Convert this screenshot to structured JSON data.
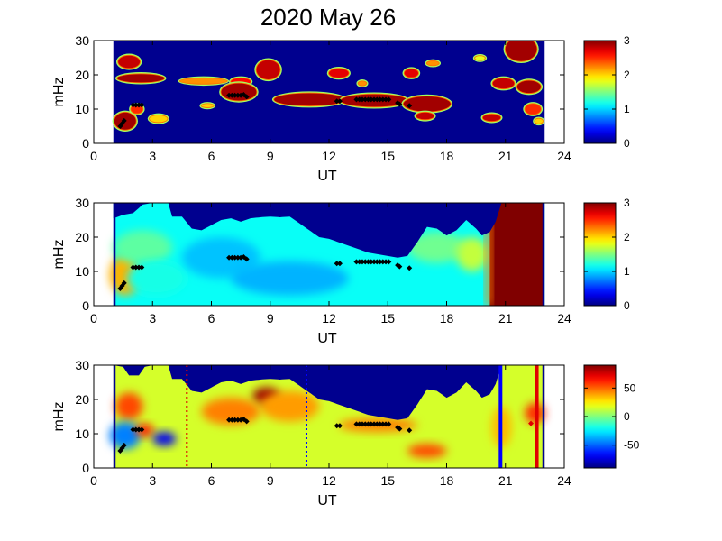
{
  "title": "2020 May 26",
  "panel_xlabel": "UT",
  "panel_ylabel": "mHz",
  "colors": {
    "background_fill": "#00008f",
    "black_marker": "#000000",
    "blue_line": "#0000ff",
    "red_line": "#e00000"
  },
  "chart_data": [
    {
      "type": "heatmap",
      "title": "",
      "xlabel": "UT",
      "ylabel": "mHz",
      "xlim": [
        0,
        24
      ],
      "ylim": [
        0,
        30
      ],
      "xticks": [
        "0",
        "3",
        "6",
        "9",
        "12",
        "15",
        "18",
        "21",
        "24"
      ],
      "yticks": [
        "0",
        "10",
        "20",
        "30"
      ],
      "data_x_range": [
        1.0,
        23.0
      ],
      "colorbar": {
        "min": 0,
        "max": 3,
        "ticks": [
          "0",
          "1",
          "2",
          "3"
        ]
      },
      "blobs": [
        {
          "x": 1.8,
          "y": 23.8,
          "w": 0.55,
          "h": 1.8,
          "v": 2.8
        },
        {
          "x": 2.4,
          "y": 19.0,
          "w": 1.2,
          "h": 1.2,
          "v": 2.9
        },
        {
          "x": 1.6,
          "y": 6.5,
          "w": 0.55,
          "h": 2.5,
          "v": 2.9
        },
        {
          "x": 2.2,
          "y": 10.0,
          "w": 0.3,
          "h": 1.2,
          "v": 2.5
        },
        {
          "x": 3.3,
          "y": 7.2,
          "w": 0.45,
          "h": 1.0,
          "v": 2.0
        },
        {
          "x": 5.6,
          "y": 18.2,
          "w": 1.2,
          "h": 0.8,
          "v": 2.2
        },
        {
          "x": 7.5,
          "y": 18.0,
          "w": 0.5,
          "h": 1.0,
          "v": 2.6
        },
        {
          "x": 7.4,
          "y": 15.0,
          "w": 0.9,
          "h": 2.5,
          "v": 2.9
        },
        {
          "x": 8.9,
          "y": 21.5,
          "w": 0.6,
          "h": 2.8,
          "v": 2.8
        },
        {
          "x": 5.8,
          "y": 11.0,
          "w": 0.3,
          "h": 0.5,
          "v": 2.0
        },
        {
          "x": 11.0,
          "y": 12.8,
          "w": 1.8,
          "h": 1.8,
          "v": 2.9
        },
        {
          "x": 14.3,
          "y": 12.5,
          "w": 1.7,
          "h": 1.8,
          "v": 2.9
        },
        {
          "x": 17.0,
          "y": 11.5,
          "w": 1.2,
          "h": 2.2,
          "v": 2.9
        },
        {
          "x": 12.5,
          "y": 20.5,
          "w": 0.5,
          "h": 1.3,
          "v": 2.7
        },
        {
          "x": 13.7,
          "y": 17.5,
          "w": 0.2,
          "h": 0.6,
          "v": 2.2
        },
        {
          "x": 16.2,
          "y": 20.5,
          "w": 0.35,
          "h": 1.2,
          "v": 2.7
        },
        {
          "x": 16.9,
          "y": 8.0,
          "w": 0.45,
          "h": 1.0,
          "v": 2.8
        },
        {
          "x": 17.3,
          "y": 23.4,
          "w": 0.3,
          "h": 0.6,
          "v": 2.2
        },
        {
          "x": 19.7,
          "y": 24.9,
          "w": 0.25,
          "h": 0.6,
          "v": 1.8
        },
        {
          "x": 20.9,
          "y": 17.5,
          "w": 0.55,
          "h": 1.5,
          "v": 2.8
        },
        {
          "x": 20.3,
          "y": 7.5,
          "w": 0.45,
          "h": 1.0,
          "v": 2.8
        },
        {
          "x": 21.8,
          "y": 27.5,
          "w": 0.8,
          "h": 3.5,
          "v": 2.9
        },
        {
          "x": 22.2,
          "y": 16.5,
          "w": 0.6,
          "h": 1.8,
          "v": 2.9
        },
        {
          "x": 22.4,
          "y": 10.0,
          "w": 0.4,
          "h": 1.5,
          "v": 2.5
        },
        {
          "x": 22.7,
          "y": 6.5,
          "w": 0.2,
          "h": 0.7,
          "v": 2.0
        }
      ],
      "markers": [
        [
          1.35,
          5.0
        ],
        [
          1.45,
          5.8
        ],
        [
          1.55,
          6.6
        ],
        [
          2.0,
          11.2
        ],
        [
          2.15,
          11.2
        ],
        [
          2.3,
          11.2
        ],
        [
          2.45,
          11.2
        ],
        [
          6.9,
          14.0
        ],
        [
          7.05,
          14.0
        ],
        [
          7.2,
          14.0
        ],
        [
          7.35,
          14.0
        ],
        [
          7.5,
          14.0
        ],
        [
          7.65,
          14.2
        ],
        [
          7.8,
          13.6
        ],
        [
          12.4,
          12.3
        ],
        [
          12.55,
          12.3
        ],
        [
          13.4,
          12.8
        ],
        [
          13.55,
          12.8
        ],
        [
          13.7,
          12.8
        ],
        [
          13.85,
          12.8
        ],
        [
          14.0,
          12.8
        ],
        [
          14.15,
          12.8
        ],
        [
          14.3,
          12.8
        ],
        [
          14.45,
          12.8
        ],
        [
          14.6,
          12.8
        ],
        [
          14.75,
          12.8
        ],
        [
          14.9,
          12.8
        ],
        [
          15.05,
          12.8
        ],
        [
          15.5,
          11.8
        ],
        [
          15.6,
          11.4
        ],
        [
          16.1,
          11.0
        ]
      ]
    },
    {
      "type": "heatmap",
      "title": "",
      "xlabel": "UT",
      "ylabel": "mHz",
      "xlim": [
        0,
        24
      ],
      "ylim": [
        0,
        30
      ],
      "xticks": [
        "0",
        "3",
        "6",
        "9",
        "12",
        "15",
        "18",
        "21",
        "24"
      ],
      "yticks": [
        "0",
        "10",
        "20",
        "30"
      ],
      "data_x_range": [
        1.0,
        23.0
      ],
      "colorbar": {
        "min": 0,
        "max": 3,
        "ticks": [
          "0",
          "1",
          "2",
          "3"
        ]
      },
      "envelope_top": [
        [
          1.0,
          25.5
        ],
        [
          1.5,
          26.5
        ],
        [
          2.0,
          27.0
        ],
        [
          2.5,
          29.5
        ],
        [
          3.0,
          30
        ],
        [
          3.8,
          30
        ],
        [
          4.0,
          26.0
        ],
        [
          4.5,
          26.0
        ],
        [
          5.0,
          22.5
        ],
        [
          5.5,
          22.0
        ],
        [
          6.0,
          23.5
        ],
        [
          6.5,
          25.0
        ],
        [
          7.0,
          25.5
        ],
        [
          7.5,
          24.5
        ],
        [
          8.0,
          25.5
        ],
        [
          8.5,
          25.8
        ],
        [
          9.0,
          26.0
        ],
        [
          9.5,
          25.8
        ],
        [
          10.0,
          26.0
        ],
        [
          10.5,
          24.0
        ],
        [
          11.0,
          22.0
        ],
        [
          11.5,
          20.0
        ],
        [
          12.0,
          19.5
        ],
        [
          12.5,
          18.5
        ],
        [
          13.0,
          17.5
        ],
        [
          13.5,
          16.5
        ],
        [
          14.0,
          15.5
        ],
        [
          14.5,
          15.0
        ],
        [
          15.0,
          14.5
        ],
        [
          15.5,
          14.0
        ],
        [
          16.0,
          14.5
        ],
        [
          16.5,
          18.5
        ],
        [
          17.0,
          23.0
        ],
        [
          17.5,
          22.5
        ],
        [
          18.0,
          20.5
        ],
        [
          18.5,
          22.0
        ],
        [
          19.0,
          25.0
        ],
        [
          19.5,
          22.5
        ],
        [
          19.8,
          20.5
        ],
        [
          20.2,
          21.5
        ],
        [
          20.5,
          24.5
        ],
        [
          20.8,
          30
        ],
        [
          23.0,
          30
        ]
      ],
      "regions": [
        {
          "x": 1.6,
          "y": 9.0,
          "w": 0.8,
          "h": 6.0,
          "v": 2.1
        },
        {
          "x": 2.5,
          "y": 17.0,
          "w": 1.5,
          "h": 5.0,
          "v": 1.4
        },
        {
          "x": 3.2,
          "y": 8.0,
          "w": 1.5,
          "h": 5.0,
          "v": 1.2
        },
        {
          "x": 6.5,
          "y": 14.0,
          "w": 2.0,
          "h": 6.0,
          "v": 0.95
        },
        {
          "x": 10.0,
          "y": 8.0,
          "w": 3.0,
          "h": 5.0,
          "v": 0.9
        },
        {
          "x": 17.5,
          "y": 17.0,
          "w": 1.5,
          "h": 4.5,
          "v": 1.45
        },
        {
          "x": 19.3,
          "y": 15.0,
          "w": 0.8,
          "h": 5.0,
          "v": 1.7
        }
      ],
      "base_value": 1.15,
      "red_band": {
        "x_start": 20.2,
        "x_end": 22.9,
        "v": 3.0
      },
      "markers": [
        [
          1.35,
          5.0
        ],
        [
          1.45,
          5.8
        ],
        [
          1.55,
          6.6
        ],
        [
          2.0,
          11.2
        ],
        [
          2.15,
          11.2
        ],
        [
          2.3,
          11.2
        ],
        [
          2.45,
          11.2
        ],
        [
          6.9,
          14.0
        ],
        [
          7.05,
          14.0
        ],
        [
          7.2,
          14.0
        ],
        [
          7.35,
          14.0
        ],
        [
          7.5,
          14.0
        ],
        [
          7.65,
          14.2
        ],
        [
          7.8,
          13.6
        ],
        [
          12.4,
          12.3
        ],
        [
          12.55,
          12.3
        ],
        [
          13.4,
          12.8
        ],
        [
          13.55,
          12.8
        ],
        [
          13.7,
          12.8
        ],
        [
          13.85,
          12.8
        ],
        [
          14.0,
          12.8
        ],
        [
          14.15,
          12.8
        ],
        [
          14.3,
          12.8
        ],
        [
          14.45,
          12.8
        ],
        [
          14.6,
          12.8
        ],
        [
          14.75,
          12.8
        ],
        [
          14.9,
          12.8
        ],
        [
          15.05,
          12.8
        ],
        [
          15.5,
          11.8
        ],
        [
          15.6,
          11.4
        ],
        [
          16.1,
          11.0
        ]
      ]
    },
    {
      "type": "heatmap",
      "title": "",
      "xlabel": "UT",
      "ylabel": "mHz",
      "xlim": [
        0,
        24
      ],
      "ylim": [
        0,
        30
      ],
      "xticks": [
        "0",
        "3",
        "6",
        "9",
        "12",
        "15",
        "18",
        "21",
        "24"
      ],
      "yticks": [
        "0",
        "10",
        "20",
        "30"
      ],
      "data_x_range": [
        1.0,
        23.0
      ],
      "colorbar": {
        "min": -90,
        "max": 90,
        "ticks": [
          "50",
          "0",
          "-50"
        ],
        "tick_values": [
          50,
          0,
          -50
        ]
      },
      "envelope_top": [
        [
          1.0,
          30
        ],
        [
          1.5,
          29.5
        ],
        [
          1.8,
          27.0
        ],
        [
          2.3,
          27.0
        ],
        [
          2.6,
          29.5
        ],
        [
          3.0,
          30
        ],
        [
          3.8,
          30
        ],
        [
          4.0,
          26.0
        ],
        [
          4.5,
          26.0
        ],
        [
          5.0,
          22.5
        ],
        [
          5.5,
          22.0
        ],
        [
          6.0,
          23.5
        ],
        [
          6.5,
          25.0
        ],
        [
          7.0,
          25.5
        ],
        [
          7.5,
          24.5
        ],
        [
          8.0,
          25.5
        ],
        [
          8.5,
          25.8
        ],
        [
          9.0,
          26.0
        ],
        [
          9.5,
          25.8
        ],
        [
          10.0,
          26.0
        ],
        [
          10.5,
          24.0
        ],
        [
          11.0,
          22.0
        ],
        [
          11.5,
          20.0
        ],
        [
          12.0,
          19.5
        ],
        [
          12.5,
          18.5
        ],
        [
          13.0,
          17.5
        ],
        [
          13.5,
          16.5
        ],
        [
          14.0,
          15.5
        ],
        [
          14.5,
          15.0
        ],
        [
          15.0,
          14.5
        ],
        [
          15.5,
          14.0
        ],
        [
          16.0,
          14.5
        ],
        [
          16.5,
          18.5
        ],
        [
          17.0,
          23.0
        ],
        [
          17.5,
          22.5
        ],
        [
          18.0,
          20.5
        ],
        [
          18.5,
          22.0
        ],
        [
          19.0,
          25.0
        ],
        [
          19.5,
          22.5
        ],
        [
          19.8,
          20.5
        ],
        [
          20.2,
          21.5
        ],
        [
          20.5,
          24.5
        ],
        [
          20.8,
          30
        ],
        [
          23.0,
          30
        ]
      ],
      "base_value": 15,
      "regions": [
        {
          "x": 1.8,
          "y": 18.0,
          "w": 0.7,
          "h": 4.0,
          "v": 55
        },
        {
          "x": 1.6,
          "y": 9.5,
          "w": 0.8,
          "h": 4.0,
          "v": -45
        },
        {
          "x": 2.6,
          "y": 11.0,
          "w": 0.45,
          "h": 1.8,
          "v": 65
        },
        {
          "x": 3.6,
          "y": 8.5,
          "w": 0.6,
          "h": 2.0,
          "v": -70
        },
        {
          "x": 8.8,
          "y": 21.0,
          "w": 0.7,
          "h": 2.5,
          "v": 85
        },
        {
          "x": 7.0,
          "y": 16.5,
          "w": 1.5,
          "h": 4.0,
          "v": 45
        },
        {
          "x": 10.0,
          "y": 18.0,
          "w": 1.5,
          "h": 4.5,
          "v": 40
        },
        {
          "x": 14.5,
          "y": 12.5,
          "w": 2.0,
          "h": 2.0,
          "v": 45
        },
        {
          "x": 17.0,
          "y": 5.0,
          "w": 1.0,
          "h": 2.0,
          "v": 55
        },
        {
          "x": 22.5,
          "y": 16.0,
          "w": 0.5,
          "h": 3.0,
          "v": 60
        },
        {
          "x": 20.8,
          "y": 12.0,
          "w": 0.5,
          "h": 6.0,
          "v": 35
        }
      ],
      "vlines": [
        {
          "x": 4.75,
          "style": "dotted",
          "color": "#e00000"
        },
        {
          "x": 10.85,
          "style": "dotted",
          "color": "#0000ff"
        },
        {
          "x": 20.75,
          "style": "solid",
          "color": "#0000ff"
        },
        {
          "x": 22.6,
          "style": "solid",
          "color": "#e00000"
        }
      ],
      "markers": [
        [
          1.35,
          5.0
        ],
        [
          1.45,
          5.8
        ],
        [
          1.55,
          6.6
        ],
        [
          2.0,
          11.2
        ],
        [
          2.15,
          11.2
        ],
        [
          2.3,
          11.2
        ],
        [
          2.45,
          11.2
        ],
        [
          6.9,
          14.0
        ],
        [
          7.05,
          14.0
        ],
        [
          7.2,
          14.0
        ],
        [
          7.35,
          14.0
        ],
        [
          7.5,
          14.0
        ],
        [
          7.65,
          14.2
        ],
        [
          7.8,
          13.6
        ],
        [
          12.4,
          12.3
        ],
        [
          12.55,
          12.3
        ],
        [
          13.4,
          12.8
        ],
        [
          13.55,
          12.8
        ],
        [
          13.7,
          12.8
        ],
        [
          13.85,
          12.8
        ],
        [
          14.0,
          12.8
        ],
        [
          14.15,
          12.8
        ],
        [
          14.3,
          12.8
        ],
        [
          14.45,
          12.8
        ],
        [
          14.6,
          12.8
        ],
        [
          14.75,
          12.8
        ],
        [
          14.9,
          12.8
        ],
        [
          15.05,
          12.8
        ],
        [
          15.5,
          11.8
        ],
        [
          15.6,
          11.4
        ],
        [
          16.1,
          11.0
        ]
      ],
      "red_markers": [
        [
          22.3,
          13.0
        ]
      ]
    }
  ]
}
